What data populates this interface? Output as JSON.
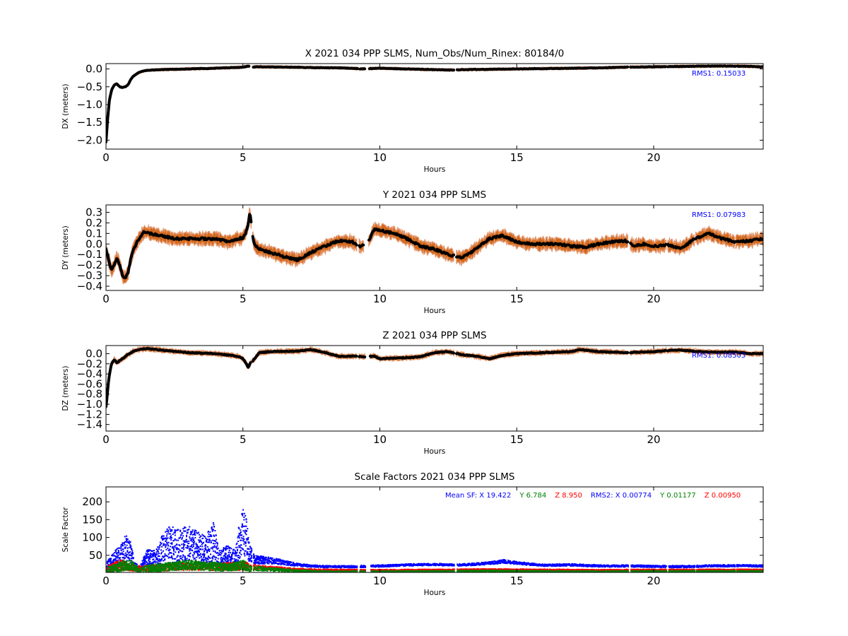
{
  "chart_data": [
    {
      "type": "scatter",
      "title": "X 2021 034 PPP  SLMS, Num_Obs/Num_Rinex: 80184/0",
      "xlabel": "Hours",
      "ylabel": "DX (meters)",
      "xlim": [
        0,
        24
      ],
      "ylim": [
        -2.25,
        0.15
      ],
      "xticks": [
        "0",
        "5",
        "10",
        "15",
        "20"
      ],
      "xtick_values": [
        0,
        5,
        10,
        15,
        20
      ],
      "yticks": [
        "0.0",
        "−0.5",
        "−1.0",
        "−1.5",
        "−2.0"
      ],
      "ytick_values": [
        0,
        -0.5,
        -1.0,
        -1.5,
        -2.0
      ],
      "annotation": "RMS1:  0.15033",
      "band_halfwidth": 0.03,
      "x": [
        0,
        0.05,
        0.12,
        0.2,
        0.3,
        0.4,
        0.5,
        0.6,
        0.7,
        0.8,
        0.9,
        1.0,
        1.2,
        1.4,
        1.7,
        2.0,
        3.0,
        4.0,
        5.0,
        5.2,
        5.3,
        5.5,
        6.5,
        7.5,
        8.5,
        9.0,
        9.3,
        9.6,
        10.0,
        11.0,
        12.0,
        12.5,
        13.0,
        14.0,
        15.0,
        16.0,
        17.0,
        18.0,
        19.0,
        20.0,
        21.0,
        22.0,
        23.0,
        24.0
      ],
      "values": [
        -2.05,
        -1.5,
        -0.9,
        -0.6,
        -0.45,
        -0.42,
        -0.5,
        -0.52,
        -0.5,
        -0.45,
        -0.3,
        -0.2,
        -0.1,
        -0.05,
        -0.03,
        -0.02,
        0.0,
        0.02,
        0.05,
        0.08,
        0.05,
        0.06,
        0.05,
        0.04,
        0.03,
        0.02,
        0.0,
        0.01,
        0.02,
        0.0,
        -0.02,
        -0.03,
        -0.02,
        -0.01,
        0.0,
        0.01,
        0.02,
        0.03,
        0.05,
        0.06,
        0.07,
        0.08,
        0.08,
        0.06
      ],
      "gaps": [
        [
          5.22,
          5.38
        ],
        [
          9.2,
          9.28
        ],
        [
          9.45,
          9.62
        ],
        [
          12.7,
          12.82
        ],
        [
          19.05,
          19.15
        ],
        [
          20.45,
          20.52
        ],
        [
          21.5,
          21.56
        ],
        [
          23.0,
          23.06
        ]
      ]
    },
    {
      "type": "scatter",
      "title": "Y 2021 034 PPP  SLMS",
      "xlabel": "Hours",
      "ylabel": "DY (meters)",
      "xlim": [
        0,
        24
      ],
      "ylim": [
        -0.44,
        0.37
      ],
      "xticks": [
        "0",
        "5",
        "10",
        "15",
        "20"
      ],
      "xtick_values": [
        0,
        5,
        10,
        15,
        20
      ],
      "yticks": [
        "0.3",
        "0.2",
        "0.1",
        "0.0",
        "−0.1",
        "−0.2",
        "−0.3",
        "−0.4"
      ],
      "ytick_values": [
        0.3,
        0.2,
        0.1,
        0,
        -0.1,
        -0.2,
        -0.3,
        -0.4
      ],
      "annotation": "RMS1:  0.07983",
      "band_halfwidth": 0.05,
      "x": [
        0,
        0.1,
        0.2,
        0.3,
        0.4,
        0.5,
        0.6,
        0.7,
        0.8,
        0.9,
        1.0,
        1.2,
        1.4,
        1.6,
        2.0,
        2.5,
        3.0,
        3.5,
        4.0,
        4.5,
        4.8,
        5.0,
        5.1,
        5.2,
        5.25,
        5.4,
        5.6,
        6.0,
        6.5,
        7.0,
        7.5,
        8.0,
        8.5,
        9.0,
        9.3,
        9.6,
        9.8,
        10.0,
        10.5,
        11.0,
        11.5,
        12.0,
        12.5,
        13.0,
        13.5,
        14.0,
        14.5,
        15.0,
        15.5,
        16.0,
        16.5,
        17.0,
        17.5,
        18.0,
        18.5,
        19.0,
        19.3,
        19.6,
        20.0,
        20.5,
        21.0,
        21.5,
        22.0,
        22.5,
        23.0,
        23.5,
        24.0
      ],
      "values": [
        -0.05,
        -0.15,
        -0.25,
        -0.2,
        -0.13,
        -0.2,
        -0.3,
        -0.33,
        -0.28,
        -0.15,
        -0.05,
        0.05,
        0.12,
        0.1,
        0.08,
        0.05,
        0.05,
        0.05,
        0.05,
        0.02,
        0.05,
        0.06,
        0.1,
        0.2,
        0.3,
        0.0,
        -0.05,
        -0.08,
        -0.12,
        -0.15,
        -0.08,
        -0.02,
        0.03,
        0.02,
        -0.03,
        0.03,
        0.14,
        0.13,
        0.1,
        0.05,
        -0.02,
        -0.05,
        -0.1,
        -0.13,
        -0.05,
        0.05,
        0.08,
        0.02,
        0.0,
        0.0,
        0.0,
        -0.02,
        -0.03,
        0.0,
        0.02,
        0.03,
        -0.02,
        0.0,
        -0.02,
        -0.01,
        -0.04,
        0.05,
        0.1,
        0.05,
        0.02,
        0.03,
        0.05
      ],
      "gaps": [
        [
          5.3,
          5.36
        ],
        [
          9.15,
          9.25
        ],
        [
          9.4,
          9.6
        ],
        [
          12.7,
          12.8
        ],
        [
          19.05,
          19.15
        ],
        [
          20.45,
          20.52
        ],
        [
          21.48,
          21.54
        ],
        [
          22.95,
          23.0
        ]
      ]
    },
    {
      "type": "scatter",
      "title": "Z 2021 034 PPP  SLMS",
      "xlabel": "Hours",
      "ylabel": "DZ (meters)",
      "xlim": [
        0,
        24
      ],
      "ylim": [
        -1.53,
        0.16
      ],
      "xticks": [
        "0",
        "5",
        "10",
        "15",
        "20"
      ],
      "xtick_values": [
        0,
        5,
        10,
        15,
        20
      ],
      "yticks": [
        "0.0",
        "−0.2",
        "−0.4",
        "−0.6",
        "−0.8",
        "−1.0",
        "−1.2",
        "−1.4"
      ],
      "ytick_values": [
        0,
        -0.2,
        -0.4,
        -0.6,
        -0.8,
        -1.0,
        -1.2,
        -1.4
      ],
      "annotation": "RMS1:  0.08503",
      "band_halfwidth": 0.04,
      "x": [
        0,
        0.05,
        0.1,
        0.2,
        0.3,
        0.4,
        0.6,
        0.8,
        1.0,
        1.2,
        1.5,
        2.0,
        3.0,
        4.0,
        4.5,
        4.8,
        5.0,
        5.1,
        5.2,
        5.25,
        5.4,
        5.6,
        6.0,
        7.0,
        7.5,
        8.0,
        8.5,
        9.0,
        9.4,
        9.8,
        10.0,
        11.0,
        11.5,
        12.0,
        12.5,
        13.0,
        13.5,
        14.0,
        14.5,
        15.0,
        16.0,
        17.0,
        17.3,
        18.0,
        19.0,
        20.0,
        20.5,
        21.0,
        22.0,
        23.0,
        23.5,
        24.0
      ],
      "values": [
        -1.05,
        -0.8,
        -0.5,
        -0.2,
        -0.12,
        -0.18,
        -0.1,
        -0.02,
        0.05,
        0.08,
        0.1,
        0.07,
        0.02,
        0.0,
        -0.03,
        -0.05,
        -0.1,
        -0.18,
        -0.28,
        -0.2,
        -0.12,
        0.02,
        0.04,
        0.05,
        0.08,
        0.02,
        -0.05,
        -0.05,
        -0.06,
        -0.05,
        -0.1,
        -0.08,
        -0.06,
        0.02,
        0.04,
        -0.02,
        -0.05,
        -0.1,
        -0.03,
        0.0,
        0.02,
        0.04,
        0.08,
        0.04,
        0.02,
        0.04,
        0.06,
        0.07,
        0.03,
        0.03,
        0.0,
        0.0
      ],
      "gaps": [
        [
          5.28,
          5.36
        ],
        [
          9.15,
          9.25
        ],
        [
          9.45,
          9.65
        ],
        [
          12.7,
          12.8
        ],
        [
          19.05,
          19.15
        ],
        [
          20.45,
          20.52
        ],
        [
          21.48,
          21.54
        ],
        [
          22.95,
          23.0
        ]
      ]
    },
    {
      "type": "scatter",
      "title": "Scale Factors 2021 034 PPP  SLMS",
      "xlabel": "Hours",
      "ylabel": "Scale Factor",
      "xlim": [
        0,
        24
      ],
      "ylim": [
        2,
        242
      ],
      "xticks": [
        "0",
        "5",
        "10",
        "15",
        "20"
      ],
      "xtick_values": [
        0,
        5,
        10,
        15,
        20
      ],
      "yticks": [
        "200",
        "150",
        "100",
        "50"
      ],
      "ytick_values": [
        200,
        150,
        100,
        50
      ],
      "annotation_parts": [
        {
          "text": "Mean SF: X  19.422",
          "color": "#0000ff"
        },
        {
          "text": "Y   6.784",
          "color": "#008000"
        },
        {
          "text": "Z   8.950",
          "color": "#ff0000"
        },
        {
          "text": "RMS2: X  0.00774",
          "color": "#0000ff"
        },
        {
          "text": "Y  0.01177",
          "color": "#008000"
        },
        {
          "text": "Z  0.00950",
          "color": "#ff0000"
        }
      ],
      "series": [
        {
          "name": "X",
          "color": "#0000ff",
          "x": [
            0,
            0.3,
            0.5,
            0.7,
            0.9,
            1.0,
            1.2,
            1.5,
            1.8,
            2.0,
            2.3,
            2.6,
            3.0,
            3.3,
            3.6,
            3.9,
            4.1,
            4.4,
            4.7,
            4.9,
            5.0,
            5.1,
            5.2,
            5.4,
            5.8,
            6.2,
            6.6,
            7.0,
            7.5,
            8.0,
            9.0,
            10.0,
            11.0,
            12.0,
            13.0,
            14.0,
            14.5,
            15.0,
            16.0,
            17.0,
            18.0,
            19.0,
            20.0,
            21.0,
            22.0,
            23.0,
            24.0
          ],
          "values": [
            20,
            40,
            50,
            70,
            60,
            25,
            15,
            45,
            40,
            60,
            80,
            70,
            85,
            75,
            65,
            90,
            40,
            50,
            45,
            110,
            120,
            100,
            60,
            40,
            38,
            35,
            30,
            25,
            22,
            20,
            20,
            22,
            25,
            26,
            25,
            30,
            35,
            30,
            24,
            25,
            22,
            22,
            21,
            20,
            22,
            23,
            22
          ],
          "spread": [
            12,
            25,
            30,
            40,
            30,
            10,
            6,
            25,
            25,
            45,
            55,
            55,
            50,
            45,
            40,
            55,
            25,
            30,
            25,
            60,
            65,
            55,
            30,
            12,
            10,
            8,
            6,
            4,
            3,
            3,
            3,
            3,
            3,
            3,
            3,
            4,
            5,
            4,
            3,
            3,
            3,
            3,
            3,
            3,
            3,
            3,
            3
          ]
        },
        {
          "name": "Y",
          "color": "#008000",
          "x": [
            0,
            0.3,
            0.6,
            0.9,
            1.2,
            1.5,
            2.0,
            2.5,
            3.0,
            3.5,
            4.0,
            4.5,
            5.0,
            5.2,
            5.5,
            6.0,
            7.0,
            8.0,
            10.0,
            12.0,
            14.0,
            16.0,
            18.0,
            20.0,
            22.0,
            24.0
          ],
          "values": [
            10,
            15,
            22,
            25,
            10,
            15,
            18,
            22,
            25,
            22,
            20,
            18,
            25,
            15,
            15,
            12,
            8,
            6,
            6,
            7,
            8,
            7,
            6,
            7,
            7,
            7
          ],
          "spread": [
            8,
            12,
            14,
            14,
            6,
            10,
            12,
            12,
            14,
            12,
            12,
            10,
            14,
            8,
            6,
            5,
            3,
            2,
            2,
            2,
            2,
            2,
            2,
            2,
            2,
            2
          ]
        },
        {
          "name": "Z",
          "color": "#ff0000",
          "x": [
            0,
            0.5,
            1.0,
            1.5,
            2.0,
            3.0,
            4.0,
            5.0,
            5.5,
            6.0,
            7.0,
            8.0,
            10.0,
            12.0,
            14.0,
            16.0,
            18.0,
            20.0,
            22.0,
            24.0
          ],
          "values": [
            12,
            25,
            15,
            15,
            18,
            20,
            20,
            22,
            18,
            16,
            12,
            10,
            10,
            11,
            12,
            11,
            10,
            11,
            11,
            11
          ],
          "spread": [
            8,
            15,
            8,
            8,
            10,
            10,
            10,
            12,
            6,
            5,
            3,
            3,
            2,
            2,
            2,
            2,
            2,
            2,
            2,
            2
          ]
        }
      ],
      "gaps": [
        [
          5.3,
          5.36
        ],
        [
          9.15,
          9.25
        ],
        [
          9.45,
          9.65
        ],
        [
          12.7,
          12.8
        ],
        [
          19.05,
          19.15
        ],
        [
          20.45,
          20.52
        ],
        [
          21.48,
          21.54
        ],
        [
          22.95,
          23.0
        ]
      ]
    }
  ]
}
